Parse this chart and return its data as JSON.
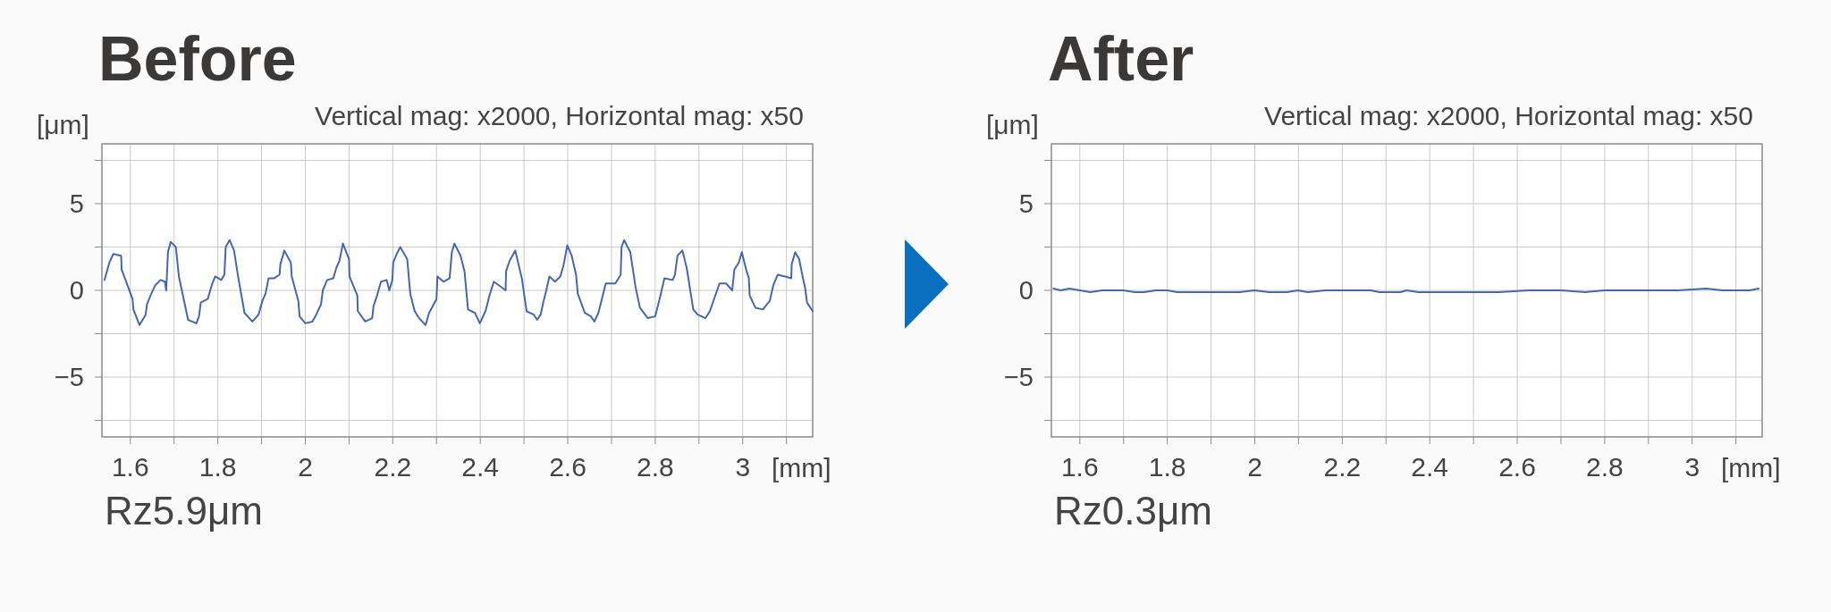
{
  "chart_data": [
    {
      "type": "line",
      "title": "Before",
      "ylabel": "[μm]",
      "xlabel": "[mm]",
      "annotations": [
        "Vertical mag: x2000, Horizontal mag: x50",
        "Rz5.9μm"
      ],
      "color": "#4468b0",
      "grid": true,
      "xlim": [
        1.535,
        3.16
      ],
      "ylim": [
        -8.45,
        8.45
      ],
      "xticks": [
        1.6,
        {
          "value": 1.7,
          "label": null
        },
        1.8,
        {
          "value": 1.9,
          "label": null
        },
        2,
        {
          "value": 2.1,
          "label": null
        },
        2.2,
        {
          "value": 2.3,
          "label": null
        },
        2.4,
        {
          "value": 2.5,
          "label": null
        },
        2.6,
        {
          "value": 2.7,
          "label": null
        },
        2.8,
        {
          "value": 2.9,
          "label": null
        },
        3,
        {
          "value": 3.1,
          "label": null
        }
      ],
      "yticks": [
        {
          "value": 7.5,
          "label": null
        },
        {
          "value": 5,
          "label": "5"
        },
        {
          "value": 2.5,
          "label": null
        },
        {
          "value": 0,
          "label": "0"
        },
        {
          "value": -2.5,
          "label": null
        },
        {
          "value": -5,
          "label": "−5"
        },
        {
          "value": -7.5,
          "label": null
        }
      ],
      "x": [
        1.541,
        1.552,
        1.561,
        1.579,
        1.58,
        1.586,
        1.605,
        1.607,
        1.621,
        1.635,
        1.638,
        1.646,
        1.657,
        1.669,
        1.679,
        1.682,
        1.686,
        1.692,
        1.704,
        1.711,
        1.732,
        1.751,
        1.757,
        1.761,
        1.777,
        1.786,
        1.794,
        1.808,
        1.815,
        1.818,
        1.827,
        1.837,
        1.847,
        1.861,
        1.879,
        1.893,
        1.902,
        1.909,
        1.916,
        1.929,
        1.941,
        1.943,
        1.952,
        1.967,
        1.969,
        1.984,
        1.987,
        2.0,
        2.016,
        2.025,
        2.036,
        2.04,
        2.05,
        2.064,
        2.071,
        2.078,
        2.086,
        2.1,
        2.101,
        2.119,
        2.12,
        2.137,
        2.153,
        2.156,
        2.164,
        2.173,
        2.186,
        2.192,
        2.199,
        2.201,
        2.209,
        2.217,
        2.233,
        2.24,
        2.25,
        2.26,
        2.275,
        2.283,
        2.3,
        2.302,
        2.316,
        2.33,
        2.335,
        2.341,
        2.355,
        2.364,
        2.372,
        2.388,
        2.399,
        2.412,
        2.421,
        2.431,
        2.458,
        2.459,
        2.467,
        2.48,
        2.495,
        2.506,
        2.522,
        2.53,
        2.538,
        2.544,
        2.551,
        2.558,
        2.571,
        2.583,
        2.59,
        2.599,
        2.609,
        2.619,
        2.623,
        2.639,
        2.653,
        2.661,
        2.67,
        2.687,
        2.709,
        2.721,
        2.723,
        2.729,
        2.743,
        2.755,
        2.765,
        2.783,
        2.8,
        2.811,
        2.821,
        2.84,
        2.845,
        2.851,
        2.862,
        2.872,
        2.887,
        2.897,
        2.915,
        2.925,
        2.947,
        2.962,
        2.976,
        2.981,
        2.991,
        2.998,
        3.009,
        3.014,
        3.016,
        3.029,
        3.046,
        3.062,
        3.07,
        3.08,
        3.097,
        3.111,
        3.112,
        3.12,
        3.129,
        3.137,
        3.143,
        3.147,
        3.16
      ],
      "values": [
        0.6,
        1.6,
        2.1,
        2.0,
        1.2,
        0.8,
        -0.5,
        -1.1,
        -2.0,
        -1.4,
        -0.8,
        -0.3,
        0.3,
        0.6,
        0.5,
        0.0,
        2.2,
        2.8,
        2.5,
        0.8,
        -1.7,
        -1.9,
        -1.5,
        -0.7,
        -0.5,
        0.3,
        0.8,
        0.6,
        0.9,
        2.5,
        2.9,
        2.3,
        0.7,
        -1.3,
        -1.8,
        -1.4,
        -0.6,
        -0.2,
        0.7,
        0.7,
        0.9,
        1.5,
        2.3,
        1.6,
        0.8,
        -0.6,
        -1.5,
        -1.9,
        -1.8,
        -1.4,
        -0.8,
        0.0,
        0.6,
        0.7,
        1.3,
        1.7,
        2.7,
        1.8,
        0.8,
        -0.3,
        -1.2,
        -1.8,
        -1.6,
        -0.9,
        -0.3,
        0.5,
        0.6,
        0.0,
        0.6,
        1.6,
        2.1,
        2.5,
        1.8,
        -0.2,
        -1.2,
        -1.6,
        -2.0,
        -1.3,
        -0.5,
        0.8,
        0.5,
        0.7,
        2.2,
        2.7,
        2.0,
        1.1,
        -1.1,
        -1.3,
        -1.9,
        -1.2,
        -0.3,
        0.5,
        0.0,
        1.1,
        1.7,
        2.3,
        0.7,
        -1.2,
        -1.4,
        -1.7,
        -1.4,
        -0.7,
        0.0,
        0.8,
        0.5,
        0.8,
        1.4,
        2.6,
        2.0,
        0.9,
        -0.2,
        -1.3,
        -1.5,
        -1.8,
        -1.3,
        0.4,
        0.4,
        0.9,
        2.5,
        2.9,
        2.2,
        0.2,
        -1.0,
        -1.6,
        -1.5,
        -0.4,
        0.7,
        0.6,
        0.9,
        2.0,
        2.3,
        1.3,
        -1.1,
        -1.4,
        -1.6,
        -1.2,
        0.4,
        0.4,
        0.0,
        1.2,
        1.6,
        2.2,
        1.1,
        0.7,
        -0.3,
        -1.0,
        -1.1,
        -0.6,
        0.3,
        0.9,
        0.8,
        0.7,
        1.5,
        2.2,
        1.8,
        0.8,
        0.1,
        -0.7,
        -1.2
      ]
    },
    {
      "type": "line",
      "title": "After",
      "ylabel": "[μm]",
      "xlabel": "[mm]",
      "annotations": [
        "Vertical mag: x2000, Horizontal mag: x50",
        "Rz0.3μm"
      ],
      "color": "#4468b0",
      "grid": true,
      "xlim": [
        1.535,
        3.16
      ],
      "ylim": [
        -8.45,
        8.45
      ],
      "xticks": [
        1.6,
        {
          "value": 1.7,
          "label": null
        },
        1.8,
        {
          "value": 1.9,
          "label": null
        },
        2,
        {
          "value": 2.1,
          "label": null
        },
        2.2,
        {
          "value": 2.3,
          "label": null
        },
        2.4,
        {
          "value": 2.5,
          "label": null
        },
        2.6,
        {
          "value": 2.7,
          "label": null
        },
        2.8,
        {
          "value": 2.9,
          "label": null
        },
        3,
        {
          "value": 3.1,
          "label": null
        }
      ],
      "yticks": [
        {
          "value": 7.5,
          "label": null
        },
        {
          "value": 5,
          "label": "5"
        },
        {
          "value": 2.5,
          "label": null
        },
        {
          "value": 0,
          "label": "0"
        },
        {
          "value": -2.5,
          "label": null
        },
        {
          "value": -5,
          "label": "−5"
        },
        {
          "value": -7.5,
          "label": null
        }
      ],
      "x": [
        1.54,
        1.556,
        1.576,
        1.6,
        1.624,
        1.651,
        1.699,
        1.726,
        1.747,
        1.774,
        1.8,
        1.823,
        1.856,
        1.903,
        1.965,
        1.999,
        2.033,
        2.074,
        2.098,
        2.121,
        2.162,
        2.21,
        2.265,
        2.285,
        2.333,
        2.347,
        2.374,
        2.456,
        2.514,
        2.558,
        2.626,
        2.7,
        2.756,
        2.8,
        2.838,
        2.879,
        2.92,
        2.967,
        3.032,
        3.07,
        3.131,
        3.152
      ],
      "values": [
        0.1,
        0.0,
        0.1,
        0.0,
        -0.1,
        0.0,
        0.0,
        -0.1,
        -0.1,
        0.0,
        0.0,
        -0.1,
        -0.1,
        -0.1,
        -0.1,
        0.0,
        -0.1,
        -0.1,
        0.0,
        -0.1,
        0.0,
        0.0,
        0.0,
        -0.1,
        -0.1,
        0.0,
        -0.1,
        -0.1,
        -0.1,
        -0.1,
        0.0,
        0.0,
        -0.1,
        0.0,
        0.0,
        0.0,
        0.0,
        0.0,
        0.1,
        0.0,
        0.0,
        0.1
      ]
    }
  ]
}
